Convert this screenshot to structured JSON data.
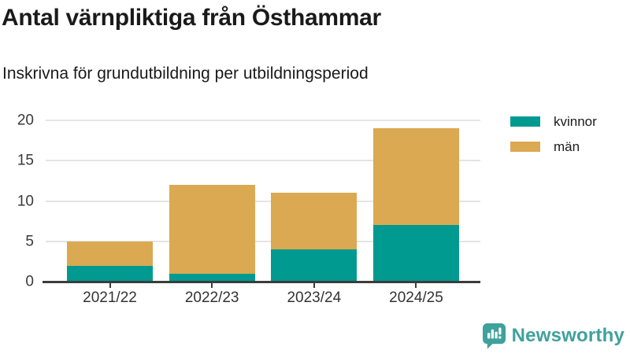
{
  "title": "Antal värnpliktiga från Östhammar",
  "subtitle": "Inskrivna för grundutbildning per utbildningsperiod",
  "chart_data": {
    "type": "bar",
    "stacked": true,
    "title": "Antal värnpliktiga från Östhammar",
    "subtitle": "Inskrivna för grundutbildning per utbildningsperiod",
    "categories": [
      "2021/22",
      "2022/23",
      "2023/24",
      "2024/25"
    ],
    "series": [
      {
        "name": "kvinnor",
        "color": "#009a91",
        "values": [
          2,
          1,
          4,
          7
        ]
      },
      {
        "name": "män",
        "color": "#daa951",
        "values": [
          3,
          11,
          7,
          12
        ]
      }
    ],
    "stack_totals": [
      5,
      12,
      11,
      19
    ],
    "xlabel": "",
    "ylabel": "",
    "ylim": [
      0,
      20
    ],
    "yticks": [
      0,
      5,
      10,
      15,
      20
    ],
    "grid": true,
    "legend_position": "top-right"
  },
  "colors": {
    "kvinnor": "#009a91",
    "man": "#daa951",
    "gridline": "#e4e4e4",
    "axis": "#3c3c3c",
    "text": "#1a1a1a",
    "brand_teal": "#3fa19b"
  },
  "branding": {
    "logo_text": "Newsworthy"
  }
}
